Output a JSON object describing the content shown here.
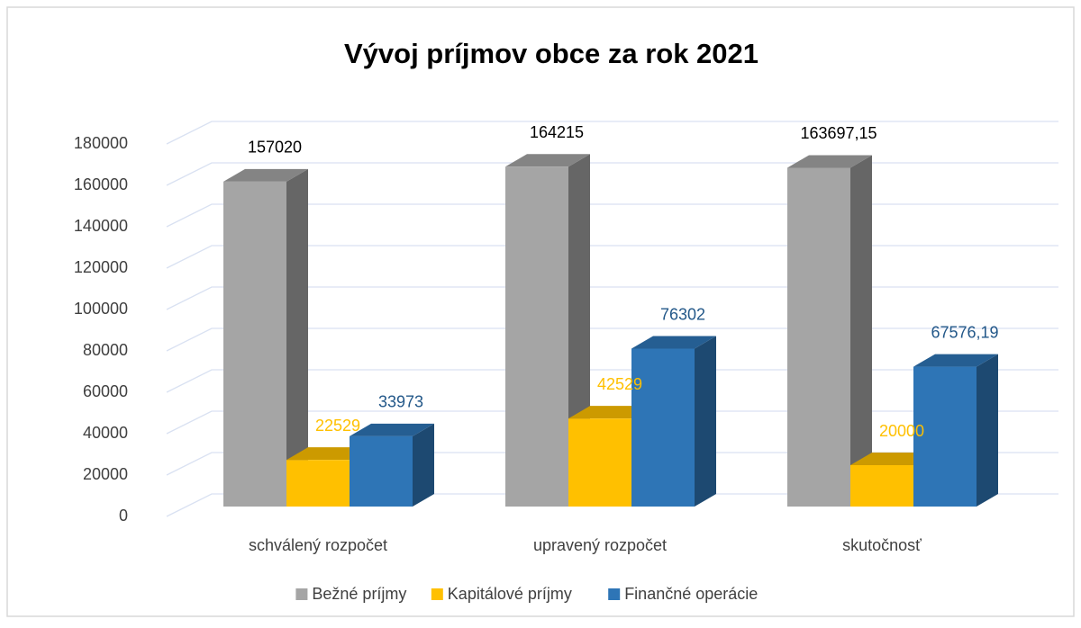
{
  "chart_data": {
    "type": "bar3d",
    "title": "Vývoj príjmov obce za rok 2021",
    "categories": [
      "schválený rozpočet",
      "upravený rozpočet",
      "skutočnosť"
    ],
    "series": [
      {
        "name": "Bežné príjmy",
        "color": "#a5a5a5",
        "values": [
          157020,
          164215,
          163697.15
        ],
        "value_labels": [
          "157020",
          "164215",
          "163697,15"
        ]
      },
      {
        "name": "Kapitálové príjmy",
        "color": "#ffc000",
        "values": [
          22529,
          42529,
          20000
        ],
        "value_labels": [
          "22529",
          "42529",
          "20000"
        ]
      },
      {
        "name": "Finančné operácie",
        "color": "#2e75b6",
        "values": [
          33973,
          76302,
          67576.19
        ],
        "value_labels": [
          "33973",
          "76302",
          "67576,19"
        ]
      }
    ],
    "ylim": [
      0,
      180000
    ],
    "yticks": [
      0,
      20000,
      40000,
      60000,
      80000,
      100000,
      120000,
      140000,
      160000,
      180000
    ],
    "grid": true,
    "legend": "bottom"
  }
}
